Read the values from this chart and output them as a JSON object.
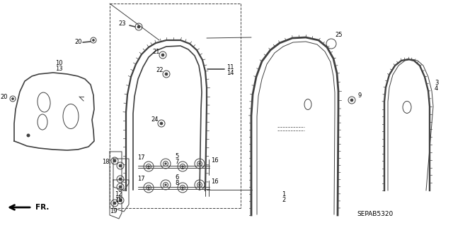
{
  "bg_color": "#ffffff",
  "line_color": "#404040",
  "text_color": "#000000",
  "part_number_text": "SEPAB5320",
  "fig_width": 6.4,
  "fig_height": 3.19,
  "dpi": 100
}
